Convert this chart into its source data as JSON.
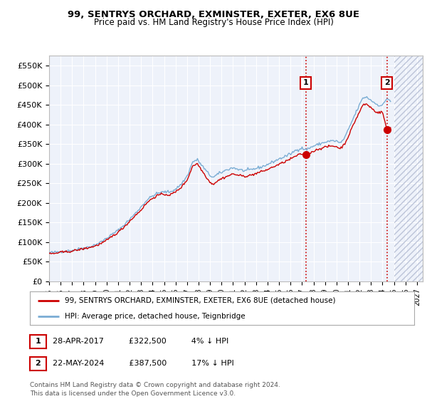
{
  "title1": "99, SENTRYS ORCHARD, EXMINSTER, EXETER, EX6 8UE",
  "title2": "Price paid vs. HM Land Registry's House Price Index (HPI)",
  "ylim": [
    0,
    575000
  ],
  "yticks": [
    0,
    50000,
    100000,
    150000,
    200000,
    250000,
    300000,
    350000,
    400000,
    450000,
    500000,
    550000
  ],
  "ytick_labels": [
    "£0",
    "£50K",
    "£100K",
    "£150K",
    "£200K",
    "£250K",
    "£300K",
    "£350K",
    "£400K",
    "£450K",
    "£500K",
    "£550K"
  ],
  "line1_color": "#cc0000",
  "line2_color": "#7aadd4",
  "point1_year": 2017.32,
  "point1_value": 322500,
  "point2_year": 2024.38,
  "point2_value": 387500,
  "vline1_year": 2017.32,
  "vline2_year": 2024.38,
  "legend_label1": "99, SENTRYS ORCHARD, EXMINSTER, EXETER, EX6 8UE (detached house)",
  "legend_label2": "HPI: Average price, detached house, Teignbridge",
  "footer": "Contains HM Land Registry data © Crown copyright and database right 2024.\nThis data is licensed under the Open Government Licence v3.0.",
  "bg_color": "#eef2fa",
  "xmin": 1995.0,
  "xmax": 2027.5,
  "hatch_start": 2025.0,
  "xtick_years": [
    1995,
    1996,
    1997,
    1998,
    1999,
    2000,
    2001,
    2002,
    2003,
    2004,
    2005,
    2006,
    2007,
    2008,
    2009,
    2010,
    2011,
    2012,
    2013,
    2014,
    2015,
    2016,
    2017,
    2018,
    2019,
    2020,
    2021,
    2022,
    2023,
    2024,
    2025,
    2026,
    2027
  ],
  "hpi_anchors": [
    [
      1995.0,
      73000
    ],
    [
      1995.5,
      74000
    ],
    [
      1996.0,
      76000
    ],
    [
      1996.5,
      77000
    ],
    [
      1997.0,
      79000
    ],
    [
      1997.5,
      82000
    ],
    [
      1998.0,
      85000
    ],
    [
      1998.5,
      88000
    ],
    [
      1999.0,
      93000
    ],
    [
      1999.5,
      100000
    ],
    [
      2000.0,
      110000
    ],
    [
      2000.5,
      120000
    ],
    [
      2001.0,
      130000
    ],
    [
      2001.5,
      143000
    ],
    [
      2002.0,
      158000
    ],
    [
      2002.5,
      173000
    ],
    [
      2003.0,
      190000
    ],
    [
      2003.5,
      207000
    ],
    [
      2004.0,
      218000
    ],
    [
      2004.5,
      225000
    ],
    [
      2005.0,
      228000
    ],
    [
      2005.5,
      228000
    ],
    [
      2006.0,
      235000
    ],
    [
      2006.5,
      248000
    ],
    [
      2007.0,
      268000
    ],
    [
      2007.5,
      305000
    ],
    [
      2007.9,
      310000
    ],
    [
      2008.3,
      295000
    ],
    [
      2008.7,
      280000
    ],
    [
      2009.0,
      270000
    ],
    [
      2009.3,
      265000
    ],
    [
      2009.6,
      272000
    ],
    [
      2010.0,
      278000
    ],
    [
      2010.5,
      285000
    ],
    [
      2011.0,
      290000
    ],
    [
      2011.5,
      285000
    ],
    [
      2012.0,
      282000
    ],
    [
      2012.5,
      284000
    ],
    [
      2013.0,
      288000
    ],
    [
      2013.5,
      292000
    ],
    [
      2014.0,
      298000
    ],
    [
      2014.5,
      305000
    ],
    [
      2015.0,
      312000
    ],
    [
      2015.5,
      318000
    ],
    [
      2016.0,
      325000
    ],
    [
      2016.5,
      335000
    ],
    [
      2017.0,
      340000
    ],
    [
      2017.32,
      335000
    ],
    [
      2017.5,
      338000
    ],
    [
      2018.0,
      345000
    ],
    [
      2018.5,
      350000
    ],
    [
      2019.0,
      355000
    ],
    [
      2019.5,
      358000
    ],
    [
      2020.0,
      358000
    ],
    [
      2020.3,
      352000
    ],
    [
      2020.7,
      365000
    ],
    [
      2021.0,
      385000
    ],
    [
      2021.3,
      405000
    ],
    [
      2021.6,
      425000
    ],
    [
      2022.0,
      450000
    ],
    [
      2022.3,
      468000
    ],
    [
      2022.6,
      470000
    ],
    [
      2023.0,
      462000
    ],
    [
      2023.3,
      455000
    ],
    [
      2023.6,
      450000
    ],
    [
      2024.0,
      448000
    ],
    [
      2024.38,
      467000
    ],
    [
      2024.7,
      460000
    ]
  ],
  "pp_anchors": [
    [
      1995.0,
      70000
    ],
    [
      1995.5,
      71000
    ],
    [
      1996.0,
      74000
    ],
    [
      1996.5,
      75000
    ],
    [
      1997.0,
      77000
    ],
    [
      1997.5,
      80000
    ],
    [
      1998.0,
      83000
    ],
    [
      1998.5,
      86000
    ],
    [
      1999.0,
      90000
    ],
    [
      1999.5,
      96000
    ],
    [
      2000.0,
      104000
    ],
    [
      2000.5,
      115000
    ],
    [
      2001.0,
      125000
    ],
    [
      2001.5,
      138000
    ],
    [
      2002.0,
      153000
    ],
    [
      2002.5,
      168000
    ],
    [
      2003.0,
      182000
    ],
    [
      2003.5,
      200000
    ],
    [
      2004.0,
      212000
    ],
    [
      2004.5,
      220000
    ],
    [
      2005.0,
      222000
    ],
    [
      2005.5,
      220000
    ],
    [
      2006.0,
      228000
    ],
    [
      2006.5,
      240000
    ],
    [
      2007.0,
      258000
    ],
    [
      2007.5,
      295000
    ],
    [
      2007.9,
      300000
    ],
    [
      2008.3,
      282000
    ],
    [
      2008.7,
      265000
    ],
    [
      2009.0,
      252000
    ],
    [
      2009.3,
      248000
    ],
    [
      2009.6,
      255000
    ],
    [
      2010.0,
      262000
    ],
    [
      2010.5,
      268000
    ],
    [
      2011.0,
      274000
    ],
    [
      2011.5,
      270000
    ],
    [
      2012.0,
      268000
    ],
    [
      2012.5,
      270000
    ],
    [
      2013.0,
      275000
    ],
    [
      2013.5,
      280000
    ],
    [
      2014.0,
      285000
    ],
    [
      2014.5,
      292000
    ],
    [
      2015.0,
      298000
    ],
    [
      2015.5,
      305000
    ],
    [
      2016.0,
      312000
    ],
    [
      2016.5,
      320000
    ],
    [
      2017.0,
      325000
    ],
    [
      2017.32,
      322500
    ],
    [
      2017.5,
      325000
    ],
    [
      2018.0,
      332000
    ],
    [
      2018.5,
      338000
    ],
    [
      2019.0,
      342000
    ],
    [
      2019.5,
      345000
    ],
    [
      2020.0,
      344000
    ],
    [
      2020.3,
      338000
    ],
    [
      2020.7,
      350000
    ],
    [
      2021.0,
      368000
    ],
    [
      2021.3,
      388000
    ],
    [
      2021.6,
      408000
    ],
    [
      2022.0,
      432000
    ],
    [
      2022.3,
      450000
    ],
    [
      2022.6,
      452000
    ],
    [
      2023.0,
      443000
    ],
    [
      2023.3,
      435000
    ],
    [
      2023.6,
      430000
    ],
    [
      2024.0,
      432000
    ],
    [
      2024.38,
      387500
    ],
    [
      2024.7,
      392000
    ]
  ]
}
